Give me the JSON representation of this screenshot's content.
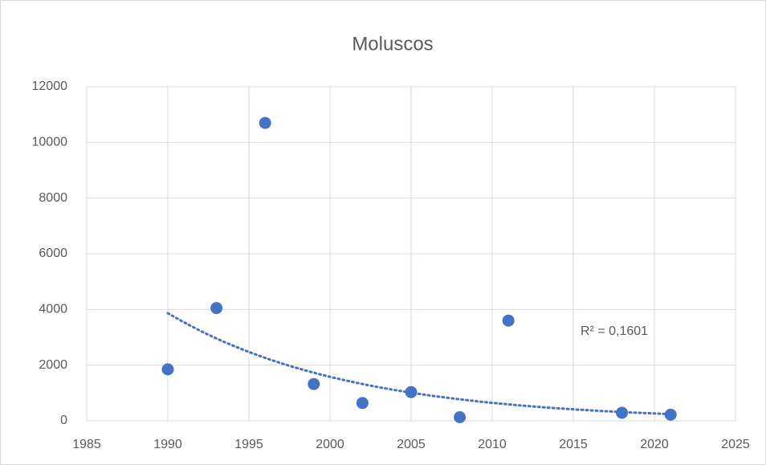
{
  "chart_data": {
    "type": "scatter",
    "title": "Moluscos",
    "x": [
      1990,
      1993,
      1996,
      1999,
      2002,
      2005,
      2008,
      2011,
      2018,
      2021
    ],
    "series": [
      {
        "name": "Moluscos",
        "color": "#4472c4",
        "values": [
          1850,
          4050,
          10700,
          1320,
          640,
          1030,
          130,
          3600,
          290,
          220
        ]
      }
    ],
    "xlim": [
      1985,
      2025
    ],
    "xticks": [
      1985,
      1990,
      1995,
      2000,
      2005,
      2010,
      2015,
      2020,
      2025
    ],
    "ylim": [
      0,
      12000
    ],
    "yticks": [
      0,
      2000,
      4000,
      6000,
      8000,
      10000,
      12000
    ],
    "grid": true,
    "trendline": {
      "type": "exponential",
      "label": "R² = 0,1601"
    }
  }
}
